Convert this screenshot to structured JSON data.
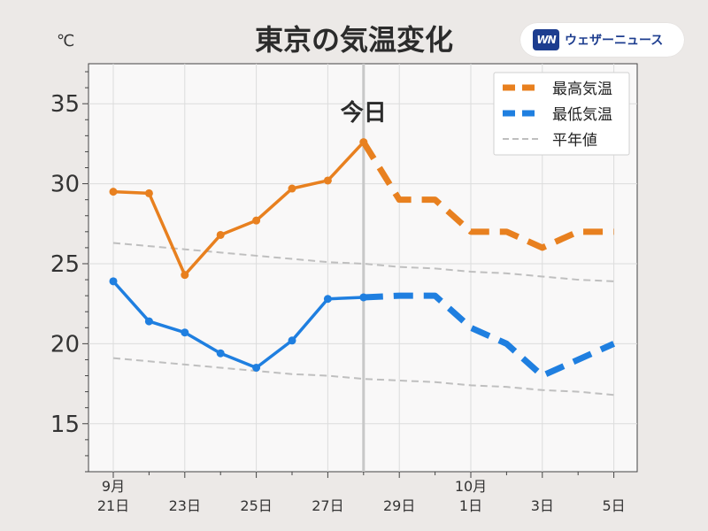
{
  "header": {
    "title": "東京の気温変化",
    "unit": "℃",
    "logo_mark": "WN",
    "logo_text": "ウェザーニュース"
  },
  "today_label": "今日",
  "colors": {
    "high": "#e8801f",
    "low": "#1f7fe0",
    "normal": "#bfbfbf",
    "today_line": "#c8c8c8",
    "plot_bg": "#f9f8f8",
    "page_bg": "#ece9e7",
    "grid": "#dcdcdc"
  },
  "chart_data": {
    "type": "line",
    "title": "東京の気温変化",
    "ylabel": "℃",
    "ylim": [
      12,
      37.5
    ],
    "yticks": [
      15,
      20,
      25,
      30,
      35
    ],
    "x_days": [
      "9/21",
      "9/22",
      "9/23",
      "9/24",
      "9/25",
      "9/26",
      "9/27",
      "9/28",
      "9/29",
      "9/30",
      "10/1",
      "10/2",
      "10/3",
      "10/4",
      "10/5"
    ],
    "x_tick_labels": [
      {
        "day": "9/21",
        "line1": "9月",
        "line2": "21日"
      },
      {
        "day": "9/23",
        "line1": "",
        "line2": "23日"
      },
      {
        "day": "9/25",
        "line1": "",
        "line2": "25日"
      },
      {
        "day": "9/27",
        "line1": "",
        "line2": "27日"
      },
      {
        "day": "9/29",
        "line1": "",
        "line2": "29日"
      },
      {
        "day": "10/1",
        "line1": "10月",
        "line2": "1日"
      },
      {
        "day": "10/3",
        "line1": "",
        "line2": "3日"
      },
      {
        "day": "10/5",
        "line1": "",
        "line2": "5日"
      }
    ],
    "today": "9/28",
    "grid": true,
    "legend_position": "top-right",
    "series": [
      {
        "name": "最高気温",
        "key": "high",
        "observed": [
          {
            "x": "9/21",
            "y": 29.5
          },
          {
            "x": "9/22",
            "y": 29.4
          },
          {
            "x": "9/23",
            "y": 24.3
          },
          {
            "x": "9/24",
            "y": 26.8
          },
          {
            "x": "9/25",
            "y": 27.7
          },
          {
            "x": "9/26",
            "y": 29.7
          },
          {
            "x": "9/27",
            "y": 30.2
          },
          {
            "x": "9/28",
            "y": 32.6
          }
        ],
        "forecast": [
          {
            "x": "9/28",
            "y": 32.6
          },
          {
            "x": "9/29",
            "y": 29.0
          },
          {
            "x": "9/30",
            "y": 29.0
          },
          {
            "x": "10/1",
            "y": 27.0
          },
          {
            "x": "10/2",
            "y": 27.0
          },
          {
            "x": "10/3",
            "y": 26.0
          },
          {
            "x": "10/4",
            "y": 27.0
          },
          {
            "x": "10/5",
            "y": 27.0
          }
        ]
      },
      {
        "name": "最低気温",
        "key": "low",
        "observed": [
          {
            "x": "9/21",
            "y": 23.9
          },
          {
            "x": "9/22",
            "y": 21.4
          },
          {
            "x": "9/23",
            "y": 20.7
          },
          {
            "x": "9/24",
            "y": 19.4
          },
          {
            "x": "9/25",
            "y": 18.5
          },
          {
            "x": "9/26",
            "y": 20.2
          },
          {
            "x": "9/27",
            "y": 22.8
          },
          {
            "x": "9/28",
            "y": 22.9
          }
        ],
        "forecast": [
          {
            "x": "9/28",
            "y": 22.9
          },
          {
            "x": "9/29",
            "y": 23.0
          },
          {
            "x": "9/30",
            "y": 23.0
          },
          {
            "x": "10/1",
            "y": 21.0
          },
          {
            "x": "10/2",
            "y": 20.0
          },
          {
            "x": "10/3",
            "y": 18.0
          },
          {
            "x": "10/4",
            "y": 19.0
          },
          {
            "x": "10/5",
            "y": 20.0
          }
        ]
      },
      {
        "name": "平年値",
        "key": "normal_high",
        "values": [
          26.3,
          26.1,
          25.9,
          25.7,
          25.5,
          25.3,
          25.1,
          25.0,
          24.8,
          24.7,
          24.5,
          24.4,
          24.2,
          24.0,
          23.9
        ]
      },
      {
        "key": "normal_low",
        "values": [
          19.1,
          18.9,
          18.7,
          18.5,
          18.3,
          18.1,
          18.0,
          17.8,
          17.7,
          17.6,
          17.4,
          17.3,
          17.1,
          17.0,
          16.8
        ]
      }
    ]
  }
}
